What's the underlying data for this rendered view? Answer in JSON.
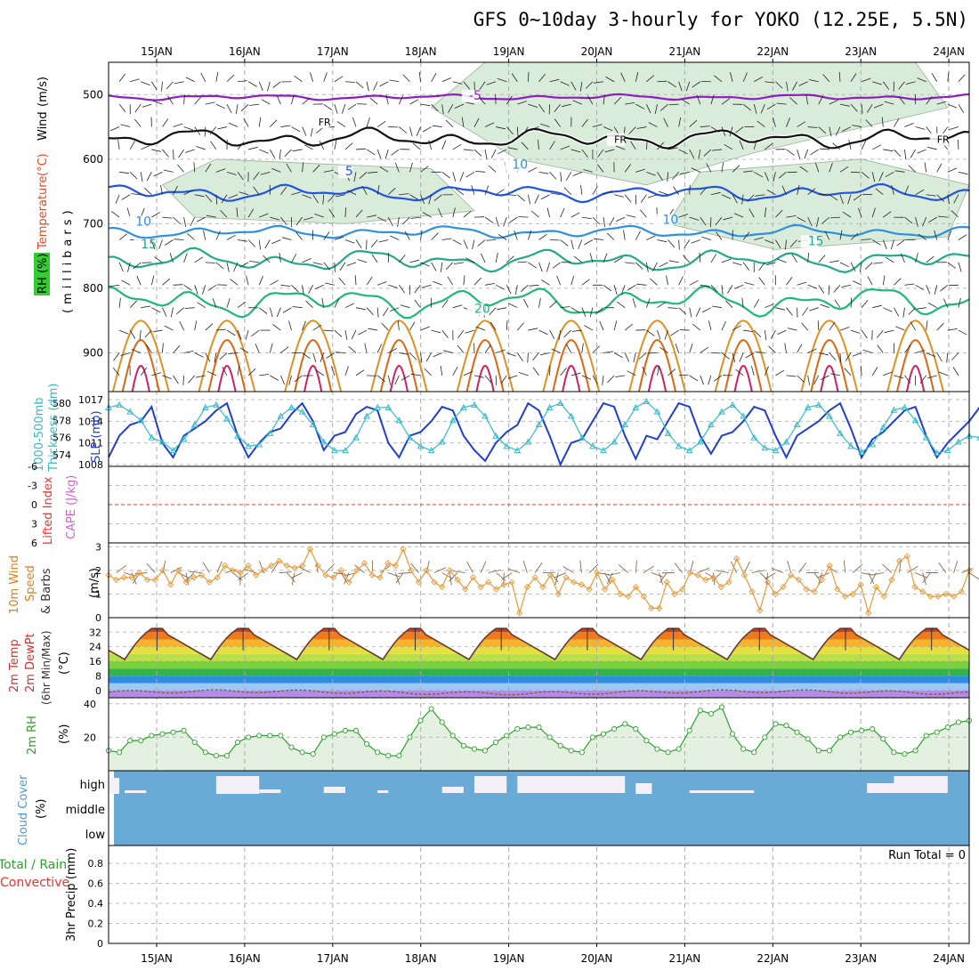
{
  "title": "GFS 0~10day 3-hourly for YOKO (12.25E, 5.5N)",
  "dates": [
    "15JAN",
    "16JAN",
    "17JAN",
    "18JAN",
    "19JAN",
    "20JAN",
    "21JAN",
    "22JAN",
    "23JAN",
    "24JAN"
  ],
  "run_total": "Run Total = 0",
  "colors": {
    "temp_minus5": "#8b1fbf",
    "freezing": "#111111",
    "temp_5": "#2255dd",
    "temp_10": "#2f8fe0",
    "temp_15": "#22aa88",
    "temp_20": "#1db87a",
    "temp_hot": "#e09020",
    "temp_hotter": "#dd6610",
    "rh_fill": "#cfe6cf",
    "slp": "#1f3fcc",
    "thickness": "#33bbcc",
    "wind": "#e89a3a",
    "rh2m": "#2fa02f",
    "cloud": "#6aaad6",
    "clear": "#f4f0f8"
  },
  "chart_data": [
    {
      "type": "line",
      "name": "upper-air",
      "ylabel_parts": [
        "RH (%)",
        "Temperature",
        "(°C)",
        "Wind",
        "(m/s)"
      ],
      "ylabel2": "(millibars)",
      "yticks": [
        500,
        600,
        700,
        800,
        900
      ],
      "ylim": [
        960,
        450
      ],
      "contour_labels": [
        {
          "text": "-5",
          "t": 33.5,
          "p": 508
        },
        {
          "text": "-5",
          "t": 87,
          "p": 515
        },
        {
          "text": "FR",
          "t": 19.5,
          "p": 548
        },
        {
          "text": "FR",
          "t": 47,
          "p": 575
        },
        {
          "text": "FR",
          "t": 77,
          "p": 575
        },
        {
          "text": "FR",
          "t": 101,
          "p": 592
        },
        {
          "text": "5",
          "t": 22,
          "p": 625
        },
        {
          "text": "5",
          "t": 88,
          "p": 663
        },
        {
          "text": "10",
          "t": 2.5,
          "p": 703
        },
        {
          "text": "10",
          "t": 51.5,
          "p": 700
        },
        {
          "text": "15",
          "t": 3,
          "p": 738
        },
        {
          "text": "15",
          "t": 65,
          "p": 733
        },
        {
          "text": "20",
          "t": 34,
          "p": 838
        },
        {
          "text": "20",
          "t": 94,
          "p": 853
        },
        {
          "text": "10",
          "t": 37.5,
          "p": 615
        },
        {
          "text": "30",
          "t": 101,
          "p": 623
        }
      ],
      "series": [
        {
          "name": "-5",
          "p_base": 504,
          "amp": 4
        },
        {
          "name": "FR",
          "p_base": 568,
          "amp": 14
        },
        {
          "name": "5",
          "p_base": 652,
          "amp": 12
        },
        {
          "name": "10",
          "p_base": 713,
          "amp": 9
        },
        {
          "name": "15",
          "p_base": 757,
          "amp": 16
        },
        {
          "name": "20",
          "p_base": 820,
          "amp": 22
        }
      ]
    },
    {
      "type": "line",
      "name": "slp-thickness",
      "ylabel_left": [
        "1000-500mb",
        "Thickness (dm)"
      ],
      "ylabel_right": "SLP (mb)",
      "yticks_left": [
        580,
        578,
        576,
        574
      ],
      "yticks_right": [
        1017,
        1014,
        1011,
        1008
      ],
      "slp": [
        1009,
        1012,
        1013.5,
        1014,
        1016,
        1011,
        1009,
        1012,
        1013,
        1014,
        1015.5,
        1016.5,
        1012,
        1009,
        1011,
        1012.5,
        1013,
        1015,
        1016.5,
        1014,
        1010,
        1012,
        1012.5,
        1015,
        1016,
        1015.5,
        1011,
        1009,
        1012,
        1012.5,
        1014,
        1016,
        1015.5,
        1012,
        1010,
        1008.5,
        1011,
        1012.5,
        1013.5,
        1016.5,
        1015.5,
        1012,
        1008,
        1011,
        1011.5,
        1014,
        1016.5,
        1016,
        1012,
        1008.8,
        1012,
        1011.5,
        1014,
        1016.5,
        1016,
        1012,
        1009.5,
        1012,
        1012.5,
        1014,
        1016,
        1015.5,
        1012,
        1009,
        1012,
        1013,
        1014,
        1015.5,
        1016.5,
        1013,
        1009,
        1011.5,
        1012.5,
        1014,
        1015.5,
        1016,
        1012,
        1009,
        1011,
        1012.5,
        1014,
        1016
      ],
      "thickness": [
        579.5,
        579.8,
        579,
        578,
        576,
        575.5,
        574.5,
        575.8,
        577.5,
        579.5,
        579.8,
        578.2,
        576.2,
        575,
        575.2,
        576.5,
        578.5,
        579.5,
        579,
        577.5,
        575.5,
        574.5,
        574.5,
        576,
        578.5,
        579.5,
        579.5,
        578,
        576,
        575,
        574.5,
        575.5,
        578,
        579.5,
        579.8,
        578.5,
        576.2,
        575,
        574.5,
        575.5,
        577.5,
        579.5,
        580,
        578.5,
        576,
        575,
        574.5,
        575.5,
        577.5,
        579.5,
        580.2,
        579,
        576.5,
        575,
        574.5,
        575.5,
        577.5,
        579,
        579.8,
        578.5,
        576,
        574.8,
        574.5,
        575.5,
        577.5,
        579.5,
        579.8,
        578.5,
        576.5,
        575,
        574.3,
        575.2,
        577.2,
        579.2,
        579.5,
        578,
        576,
        574.2,
        574.5,
        575.5,
        576.2,
        576
      ],
      "bottom_labels": [
        574,
        1008
      ]
    },
    {
      "type": "line",
      "name": "instability",
      "ylabel_parts": [
        "Lifted Index",
        "CAPE (J/kg)"
      ],
      "yticks": [
        -6,
        -3,
        0,
        3,
        6
      ],
      "ylim": [
        -6,
        6
      ],
      "lifted_index": []
    },
    {
      "type": "line",
      "name": "wind10m",
      "ylabel_parts": [
        "10m Wind",
        "Speed",
        "& Barbs",
        "(m/s)"
      ],
      "yticks": [
        0,
        1,
        2,
        3
      ],
      "ylim": [
        0,
        3.2
      ],
      "values": [
        1.8,
        1.6,
        1.7,
        1.7,
        1.9,
        1.6,
        1.6,
        2.0,
        1.4,
        2.0,
        1.5,
        1.7,
        1.8,
        1.5,
        1.7,
        2.2,
        2.0,
        1.9,
        2.2,
        1.8,
        2.0,
        2.2,
        2.4,
        2.2,
        2.1,
        2.2,
        2.9,
        2.2,
        1.8,
        1.7,
        2.0,
        1.5,
        2.0,
        2.3,
        1.8,
        1.7,
        2.3,
        2.2,
        2.9,
        2.0,
        1.5,
        2.0,
        1.5,
        1.3,
        2.0,
        1.6,
        1.2,
        1.7,
        1.3,
        1.5,
        1.2,
        1.4,
        1.5,
        0.2,
        1.3,
        1.7,
        1.3,
        1.8,
        1.0,
        1.7,
        1.5,
        1.4,
        1.2,
        1.9,
        1.2,
        1.6,
        1.0,
        0.9,
        1.3,
        0.9,
        0.4,
        0.4,
        1.5,
        1.0,
        1.2,
        1.9,
        1.8,
        1.6,
        1.7,
        1.3,
        1.5,
        2.5,
        1.8,
        1.1,
        0.3,
        1.5,
        1.0,
        1.3,
        1.8,
        1.6,
        1.2,
        1.1,
        1.6,
        2.2,
        1.2,
        0.9,
        1.0,
        1.4,
        0.2,
        1.3,
        0.9,
        1.6,
        2.4,
        2.6,
        1.3,
        1.1,
        0.9,
        0.9,
        1.0,
        0.9,
        1.1,
        2.0
      ]
    },
    {
      "type": "area",
      "name": "temp2m",
      "ylabel_parts": [
        "2m Temp",
        "2m DewPt",
        "(6hr Min/Max)",
        "(°C)"
      ],
      "yticks": [
        32,
        24,
        16,
        8,
        0
      ],
      "ylim": [
        -4,
        38
      ],
      "max_c": 34,
      "min_c": 17,
      "dewpoint_c": 0
    },
    {
      "type": "area",
      "name": "rh2m",
      "ylabel_parts": [
        "2m RH",
        "(%)"
      ],
      "yticks": [
        40,
        20
      ],
      "ylim": [
        0,
        42
      ],
      "values": [
        12,
        11,
        18,
        18,
        21,
        22,
        23,
        24,
        17,
        11,
        9,
        9,
        17,
        20,
        21,
        21,
        21,
        14,
        11,
        10,
        20,
        22,
        24,
        24,
        16,
        11,
        9,
        9,
        20,
        30,
        37,
        29,
        21,
        15,
        13,
        12,
        17,
        21,
        25,
        26,
        26,
        20,
        15,
        12,
        11,
        20,
        22,
        25,
        28,
        25,
        18,
        13,
        11,
        13,
        24,
        36,
        34,
        38,
        22,
        13,
        11,
        20,
        28,
        27,
        23,
        19,
        12,
        12,
        20,
        23,
        24,
        25,
        19,
        11,
        10,
        12,
        21,
        23,
        26,
        29,
        30
      ]
    },
    {
      "type": "heatmap",
      "name": "cloud-cover",
      "ylabel_parts": [
        "Cloud Cover",
        "(%)"
      ],
      "levels": [
        "high",
        "middle",
        "low"
      ]
    },
    {
      "type": "bar",
      "name": "precip",
      "ylabel_parts": [
        "Total / Rain",
        "Convective",
        "3hr Precip (mm)"
      ],
      "yticks": [
        0.8,
        0.6,
        0.4,
        0.2,
        0
      ],
      "ylim": [
        0,
        1
      ],
      "values": []
    }
  ]
}
